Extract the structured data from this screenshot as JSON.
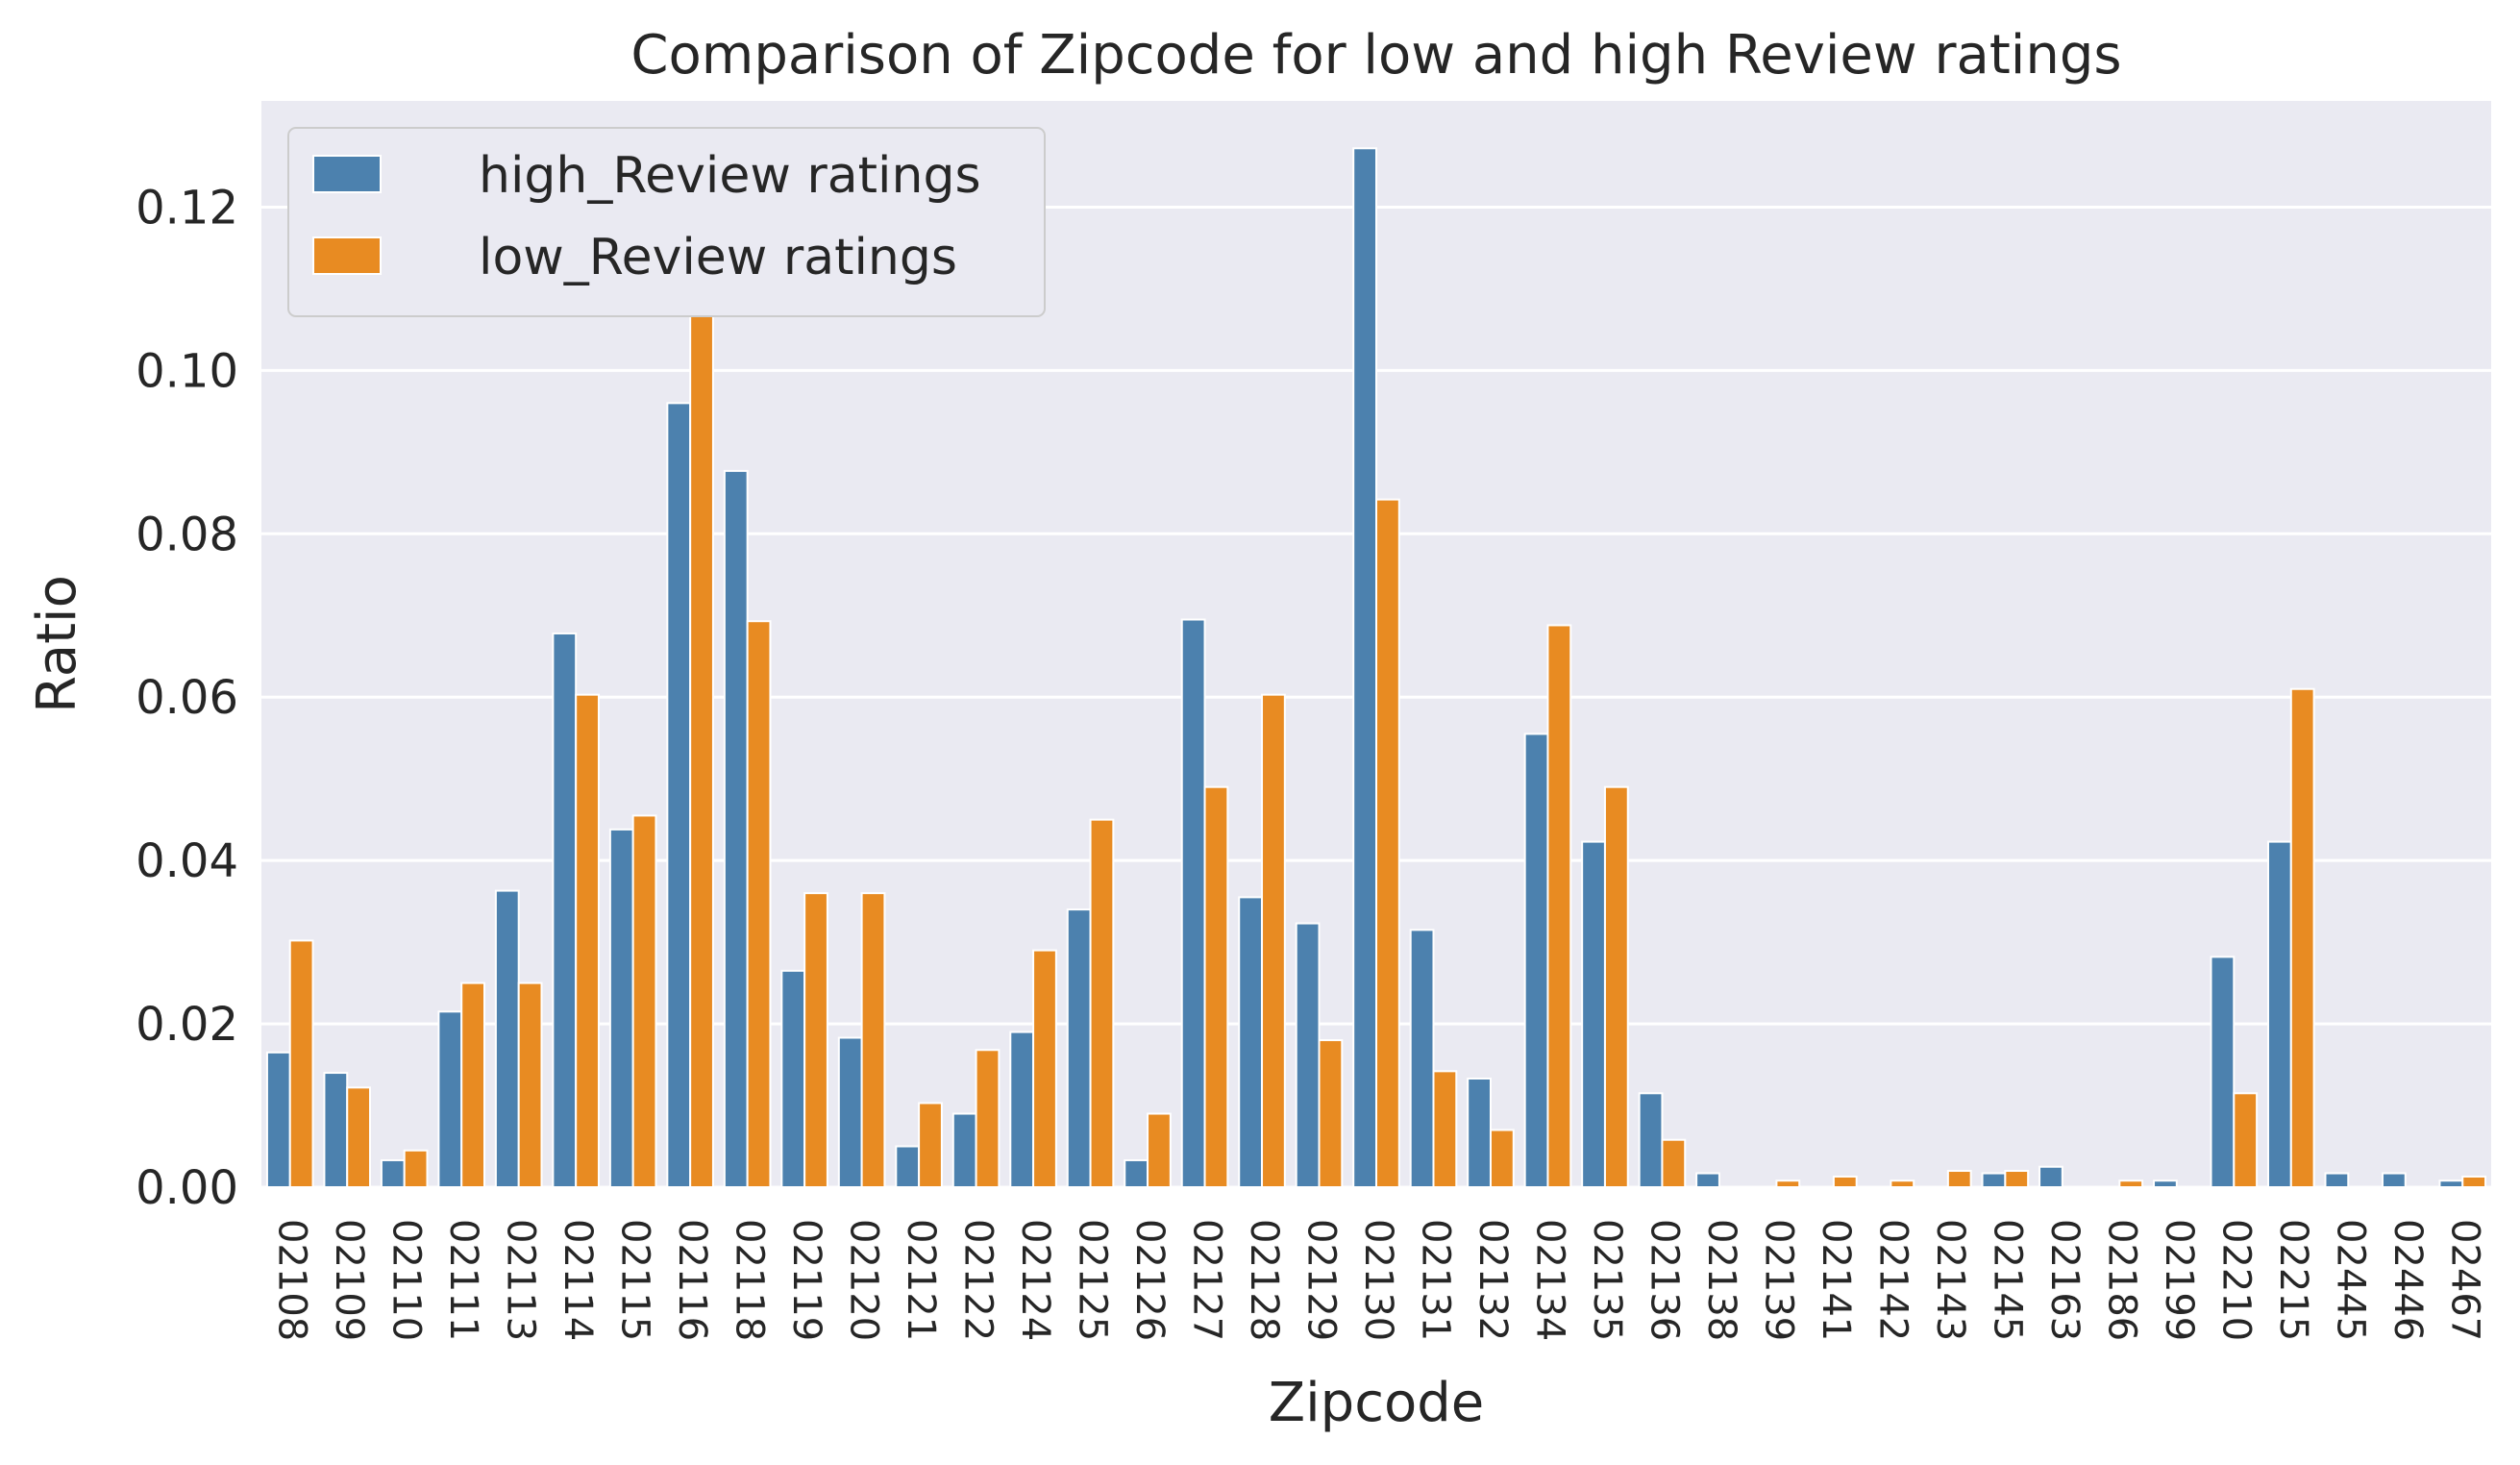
{
  "chart_data": {
    "type": "bar",
    "title": "Comparison of Zipcode for low and high Review ratings",
    "xlabel": "Zipcode",
    "ylabel": "Ratio",
    "ylim": [
      0,
      0.133
    ],
    "yticks": [
      "0.00",
      "0.02",
      "0.04",
      "0.06",
      "0.08",
      "0.10",
      "0.12"
    ],
    "ytick_values": [
      0,
      0.02,
      0.04,
      0.06,
      0.08,
      0.1,
      0.12
    ],
    "grid": true,
    "legend_position": "top-left",
    "categories": [
      "02108",
      "02109",
      "02110",
      "02111",
      "02113",
      "02114",
      "02115",
      "02116",
      "02118",
      "02119",
      "02120",
      "02121",
      "02122",
      "02124",
      "02125",
      "02126",
      "02127",
      "02128",
      "02129",
      "02130",
      "02131",
      "02132",
      "02134",
      "02135",
      "02136",
      "02138",
      "02139",
      "02141",
      "02142",
      "02143",
      "02145",
      "02163",
      "02186",
      "02199",
      "02210",
      "02215",
      "02445",
      "02446",
      "02467"
    ],
    "series": [
      {
        "name": "high_Review ratings",
        "color": "#4c81ae",
        "values": [
          0.0165,
          0.014,
          0.0033,
          0.0215,
          0.0363,
          0.0678,
          0.0438,
          0.096,
          0.0877,
          0.0265,
          0.0183,
          0.005,
          0.009,
          0.019,
          0.034,
          0.0033,
          0.0695,
          0.0355,
          0.0323,
          0.1272,
          0.0315,
          0.0133,
          0.0555,
          0.0423,
          0.0115,
          0.0017,
          0,
          0,
          0,
          0,
          0.0017,
          0.0025,
          0,
          0.0008,
          0.0282,
          0.0423,
          0.0017,
          0.0017,
          0.0008
        ]
      },
      {
        "name": "low_Review ratings",
        "color": "#e88b22",
        "values": [
          0.0302,
          0.0122,
          0.0045,
          0.025,
          0.025,
          0.0603,
          0.0455,
          0.111,
          0.0693,
          0.036,
          0.036,
          0.0103,
          0.0168,
          0.029,
          0.045,
          0.009,
          0.049,
          0.0603,
          0.018,
          0.0842,
          0.0142,
          0.007,
          0.0688,
          0.049,
          0.0058,
          0,
          0.0008,
          0.0013,
          0.0008,
          0.002,
          0.002,
          0,
          0.0008,
          0,
          0.0115,
          0.061,
          0,
          0,
          0.0013
        ]
      }
    ]
  }
}
